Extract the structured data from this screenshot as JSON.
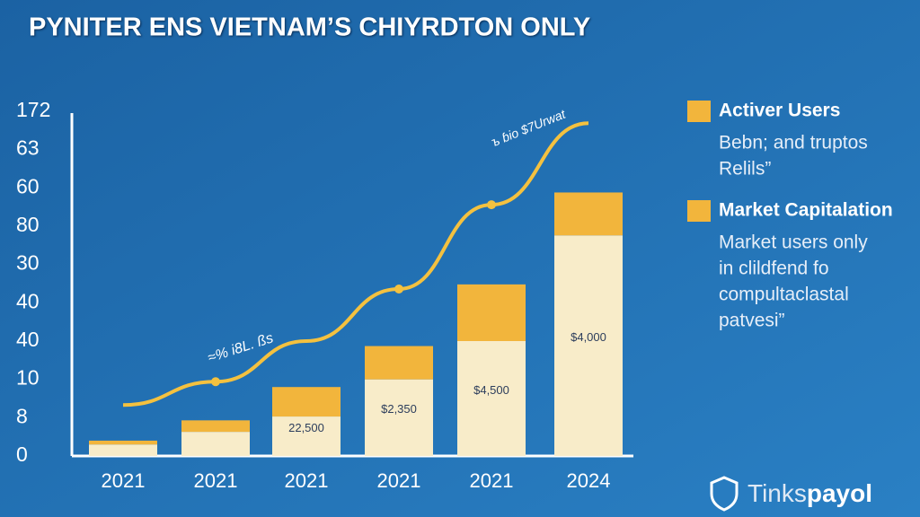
{
  "chart_data": {
    "type": "bar",
    "title": "PYNITER ENS VIETNAM’S CHIYRDTON ONLY",
    "categories": [
      "2021",
      "2021",
      "2021",
      "2021",
      "2021",
      "2024"
    ],
    "ylim": [
      0,
      9
    ],
    "yticks": [
      {
        "value": 0,
        "label": "0"
      },
      {
        "value": 1,
        "label": "8"
      },
      {
        "value": 2,
        "label": "10"
      },
      {
        "value": 3,
        "label": "40"
      },
      {
        "value": 4,
        "label": "40"
      },
      {
        "value": 5,
        "label": "30"
      },
      {
        "value": 6,
        "label": "80"
      },
      {
        "value": 7,
        "label": "60"
      },
      {
        "value": 8,
        "label": "63"
      },
      {
        "value": 9,
        "label": "172"
      }
    ],
    "series": [
      {
        "color": "#f8ecc9",
        "values": [
          0.3,
          0.63,
          1.03,
          2.0,
          3.0,
          5.76
        ]
      },
      {
        "color": "#f2b53c",
        "values": [
          0.1,
          0.3,
          0.77,
          0.87,
          1.48,
          1.12
        ]
      }
    ],
    "bar_labels": [
      null,
      null,
      "22,500",
      "$2,350",
      "$4,500",
      "$4,000"
    ],
    "line": {
      "color": "#f4c13f",
      "values": [
        1.33,
        1.94,
        3.0,
        4.36,
        6.56,
        8.69
      ],
      "markers": [
        false,
        true,
        false,
        true,
        true,
        false
      ]
    },
    "annotations": [
      "≈% i8L. ßs",
      "ъ ɓio  $7Urwat"
    ],
    "legend": [
      {
        "label": "Activer Users",
        "color": "#f2b53c",
        "text": [
          "Bebn; and truptos",
          "Relils”"
        ]
      },
      {
        "label": "Market Capitalation",
        "color": "#f2b53c",
        "text": [
          "Market users only",
          "in clildfend fo",
          "compultaclastal",
          "patvesi”"
        ]
      }
    ],
    "logo": [
      "Tinks",
      "payol"
    ]
  }
}
